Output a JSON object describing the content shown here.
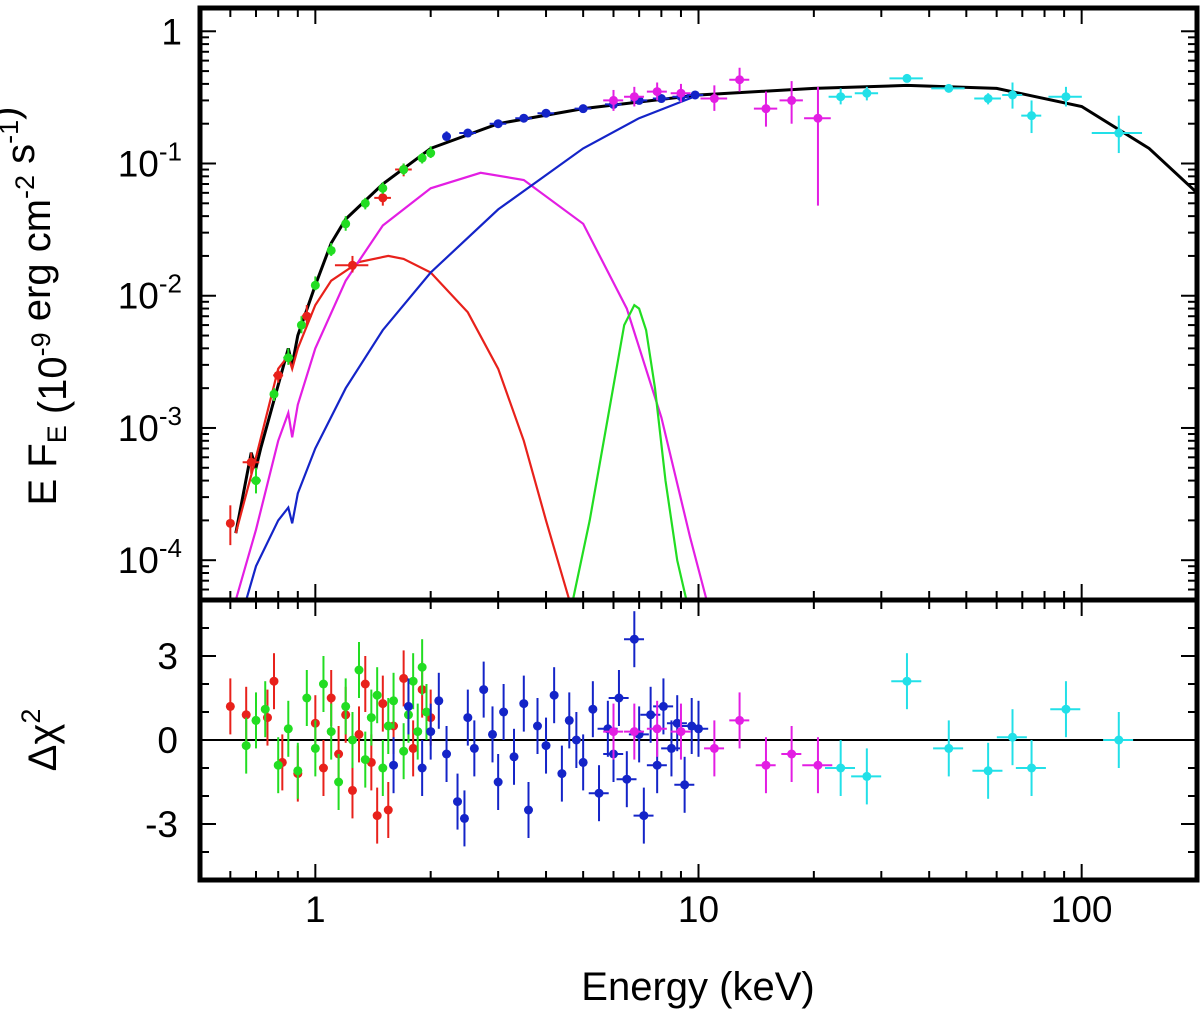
{
  "chart_data": [
    {
      "type": "line",
      "panel": "top",
      "xlabel": "Energy (keV)",
      "ylabel": "E F_E (10^-9 erg cm^-2 s^-1)",
      "xscale": "log",
      "yscale": "log",
      "xlim": [
        0.5,
        200
      ],
      "ylim": [
        5e-05,
        1.5
      ],
      "x_ticks": [
        {
          "value": 1,
          "label": "1"
        },
        {
          "value": 10,
          "label": "10"
        },
        {
          "value": 100,
          "label": "100"
        }
      ],
      "y_ticks": [
        {
          "value": 1,
          "base": "1",
          "exp": ""
        },
        {
          "value": 0.1,
          "base": "10",
          "exp": "-1"
        },
        {
          "value": 0.01,
          "base": "10",
          "exp": "-2"
        },
        {
          "value": 0.001,
          "base": "10",
          "exp": "-3"
        },
        {
          "value": 0.0001,
          "base": "10",
          "exp": "-4"
        }
      ],
      "models": [
        {
          "name": "total",
          "color": "#000000",
          "x": [
            0.62,
            0.68,
            0.7,
            0.72,
            0.85,
            0.87,
            0.9,
            1.0,
            1.1,
            1.2,
            1.5,
            2.0,
            3.0,
            5.0,
            10,
            20,
            35,
            60,
            100,
            150,
            200
          ],
          "y": [
            0.00016,
            0.00065,
            0.0005,
            0.0007,
            0.004,
            0.003,
            0.005,
            0.012,
            0.025,
            0.038,
            0.07,
            0.13,
            0.2,
            0.26,
            0.33,
            0.37,
            0.39,
            0.37,
            0.27,
            0.13,
            0.06
          ]
        },
        {
          "name": "red component",
          "color": "#e8211b",
          "x": [
            0.62,
            0.7,
            0.8,
            0.85,
            0.87,
            0.9,
            1.0,
            1.1,
            1.3,
            1.55,
            1.7,
            2.0,
            2.5,
            3.0,
            3.5,
            4.0,
            4.6
          ],
          "y": [
            0.00016,
            0.0006,
            0.0028,
            0.0035,
            0.0028,
            0.004,
            0.0085,
            0.013,
            0.018,
            0.02,
            0.019,
            0.015,
            0.0075,
            0.0028,
            0.0008,
            0.0002,
            5e-05
          ]
        },
        {
          "name": "magenta component",
          "color": "#e31ee3",
          "x": [
            0.62,
            0.7,
            0.8,
            0.85,
            0.87,
            0.9,
            1.0,
            1.2,
            1.5,
            2.0,
            2.7,
            3.5,
            5.0,
            6.5,
            8.0,
            9.5,
            10.5
          ],
          "y": [
            5e-05,
            0.00017,
            0.0008,
            0.0013,
            0.00085,
            0.0015,
            0.004,
            0.013,
            0.034,
            0.065,
            0.085,
            0.075,
            0.035,
            0.008,
            0.0012,
            0.00015,
            5e-05
          ]
        },
        {
          "name": "blue component",
          "color": "#1424c8",
          "x": [
            0.66,
            0.7,
            0.8,
            0.85,
            0.87,
            0.9,
            1.0,
            1.2,
            1.5,
            2.0,
            3.0,
            5.0,
            7.0,
            10
          ],
          "y": [
            5e-05,
            9e-05,
            0.0002,
            0.00025,
            0.00019,
            0.00032,
            0.0007,
            0.002,
            0.0055,
            0.015,
            0.045,
            0.13,
            0.22,
            0.33
          ]
        },
        {
          "name": "green line",
          "color": "#22dd22",
          "x": [
            4.7,
            5.2,
            5.8,
            6.4,
            6.8,
            7.0,
            7.3,
            7.7,
            8.2,
            8.8,
            9.3
          ],
          "y": [
            5e-05,
            0.0002,
            0.0012,
            0.006,
            0.0085,
            0.008,
            0.0055,
            0.002,
            0.0004,
            0.0001,
            5e-05
          ]
        }
      ],
      "series": [
        {
          "name": "red data",
          "color": "#e8211b",
          "points": [
            [
              0.6,
              0.00019,
              0.02,
              0.00026,
              0.00013
            ],
            [
              0.68,
              0.00055,
              0.05,
              0.00065,
              0.00045
            ],
            [
              0.8,
              0.0025,
              0.03,
              0.0028,
              0.0022
            ],
            [
              0.95,
              0.007,
              0.03,
              0.0085,
              0.006
            ],
            [
              1.25,
              0.017,
              0.1,
              0.02,
              0.015
            ],
            [
              1.5,
              0.055,
              0.05,
              0.062,
              0.048
            ],
            [
              1.7,
              0.09,
              0.05,
              0.1,
              0.08
            ]
          ]
        },
        {
          "name": "green data",
          "color": "#22dd22",
          "points": [
            [
              0.7,
              0.0004,
              0.03,
              0.0005,
              0.00032
            ],
            [
              0.78,
              0.0018,
              0.02,
              0.002,
              0.0016
            ],
            [
              0.85,
              0.0034,
              0.03,
              0.004,
              0.003
            ],
            [
              0.92,
              0.006,
              0.02,
              0.007,
              0.0052
            ],
            [
              1.0,
              0.012,
              0.02,
              0.014,
              0.011
            ],
            [
              1.1,
              0.022,
              0.02,
              0.025,
              0.02
            ],
            [
              1.2,
              0.035,
              0.02,
              0.04,
              0.031
            ],
            [
              1.35,
              0.05,
              0.02,
              0.055,
              0.045
            ],
            [
              1.5,
              0.065,
              0.02,
              0.072,
              0.059
            ],
            [
              1.7,
              0.09,
              0.02,
              0.1,
              0.082
            ],
            [
              1.9,
              0.11,
              0.02,
              0.12,
              0.1
            ],
            [
              2.0,
              0.12,
              0.02,
              0.135,
              0.11
            ]
          ]
        },
        {
          "name": "blue data",
          "color": "#1424c8",
          "points": [
            [
              2.2,
              0.16,
              0.02,
              0.175,
              0.15
            ],
            [
              2.5,
              0.17,
              0.05,
              0.18,
              0.16
            ],
            [
              3.0,
              0.2,
              0.05,
              0.21,
              0.19
            ],
            [
              3.5,
              0.22,
              0.05,
              0.23,
              0.21
            ],
            [
              4.0,
              0.24,
              0.05,
              0.25,
              0.23
            ],
            [
              5.0,
              0.26,
              0.05,
              0.27,
              0.25
            ],
            [
              6.0,
              0.28,
              0.05,
              0.29,
              0.27
            ],
            [
              7.0,
              0.3,
              0.05,
              0.31,
              0.29
            ],
            [
              8.0,
              0.31,
              0.05,
              0.32,
              0.3
            ],
            [
              9.0,
              0.32,
              0.05,
              0.33,
              0.31
            ],
            [
              9.8,
              0.33,
              0.05,
              0.34,
              0.32
            ]
          ]
        },
        {
          "name": "magenta data",
          "color": "#e31ee3",
          "points": [
            [
              6.0,
              0.3,
              0.06,
              0.36,
              0.25
            ],
            [
              6.8,
              0.32,
              0.06,
              0.38,
              0.27
            ],
            [
              7.8,
              0.35,
              0.06,
              0.41,
              0.3
            ],
            [
              9.0,
              0.34,
              0.06,
              0.4,
              0.29
            ],
            [
              11.0,
              0.31,
              0.08,
              0.39,
              0.25
            ],
            [
              12.8,
              0.43,
              0.06,
              0.53,
              0.35
            ],
            [
              15.0,
              0.26,
              0.07,
              0.35,
              0.19
            ],
            [
              17.5,
              0.3,
              0.07,
              0.42,
              0.2
            ],
            [
              20.5,
              0.22,
              0.08,
              0.38,
              0.048
            ]
          ]
        },
        {
          "name": "cyan data",
          "color": "#22e0e8",
          "points": [
            [
              23.5,
              0.32,
              0.07,
              0.37,
              0.28
            ],
            [
              27.5,
              0.34,
              0.07,
              0.38,
              0.3
            ],
            [
              35.0,
              0.44,
              0.1,
              0.46,
              0.42
            ],
            [
              45.0,
              0.37,
              0.1,
              0.39,
              0.35
            ],
            [
              57.0,
              0.31,
              0.08,
              0.34,
              0.28
            ],
            [
              66.0,
              0.33,
              0.06,
              0.41,
              0.26
            ],
            [
              74.0,
              0.23,
              0.06,
              0.3,
              0.17
            ],
            [
              91.0,
              0.32,
              0.1,
              0.38,
              0.27
            ],
            [
              125.0,
              0.17,
              0.15,
              0.23,
              0.12
            ]
          ]
        }
      ]
    },
    {
      "type": "scatter",
      "panel": "bottom",
      "xlabel": "Energy (keV)",
      "ylabel": "Δχ²",
      "ylabel_base": "Δχ",
      "ylabel_exp": "2",
      "xscale": "log",
      "xlim": [
        0.5,
        200
      ],
      "ylim": [
        -5,
        5
      ],
      "y_ticks": [
        {
          "value": 3,
          "label": "3"
        },
        {
          "value": 0,
          "label": "0"
        },
        {
          "value": -3,
          "label": "-3"
        }
      ],
      "series": [
        {
          "name": "red",
          "color": "#e8211b",
          "points": [
            [
              0.6,
              1.2
            ],
            [
              0.66,
              0.9
            ],
            [
              0.75,
              0.8
            ],
            [
              0.78,
              2.1
            ],
            [
              0.82,
              -0.8
            ],
            [
              0.9,
              -1.2
            ],
            [
              1.0,
              0.6
            ],
            [
              1.05,
              -1.0
            ],
            [
              1.1,
              1.5
            ],
            [
              1.15,
              -0.5
            ],
            [
              1.2,
              0.9
            ],
            [
              1.25,
              -1.8
            ],
            [
              1.3,
              0.2
            ],
            [
              1.35,
              2.0
            ],
            [
              1.4,
              -0.8
            ],
            [
              1.45,
              -2.7
            ],
            [
              1.5,
              1.3
            ],
            [
              1.55,
              -2.5
            ],
            [
              1.6,
              0.5
            ],
            [
              1.7,
              2.2
            ],
            [
              1.8,
              -0.3
            ],
            [
              1.9,
              1.8
            ],
            [
              2.0,
              0.8
            ]
          ]
        },
        {
          "name": "green",
          "color": "#22dd22",
          "points": [
            [
              0.66,
              -0.2
            ],
            [
              0.7,
              0.7
            ],
            [
              0.74,
              1.1
            ],
            [
              0.8,
              -0.9
            ],
            [
              0.85,
              0.4
            ],
            [
              0.9,
              -1.1
            ],
            [
              0.95,
              1.5
            ],
            [
              1.0,
              -0.3
            ],
            [
              1.05,
              2.0
            ],
            [
              1.1,
              0.3
            ],
            [
              1.15,
              -1.5
            ],
            [
              1.2,
              1.2
            ],
            [
              1.25,
              0.0
            ],
            [
              1.3,
              2.5
            ],
            [
              1.35,
              -0.7
            ],
            [
              1.4,
              0.8
            ],
            [
              1.45,
              1.6
            ],
            [
              1.5,
              -1.0
            ],
            [
              1.55,
              0.5
            ],
            [
              1.6,
              1.4
            ],
            [
              1.7,
              -0.4
            ],
            [
              1.75,
              0.9
            ],
            [
              1.8,
              2.1
            ],
            [
              1.85,
              0.3
            ],
            [
              1.9,
              2.6
            ],
            [
              1.95,
              1.0
            ]
          ]
        },
        {
          "name": "blue",
          "color": "#1424c8",
          "points": [
            [
              1.6,
              -0.9
            ],
            [
              1.75,
              1.2
            ],
            [
              1.9,
              -1.0
            ],
            [
              2.0,
              0.3
            ],
            [
              2.1,
              1.4
            ],
            [
              2.2,
              -0.5
            ],
            [
              2.35,
              -2.2
            ],
            [
              2.45,
              -2.8
            ],
            [
              2.5,
              0.8
            ],
            [
              2.6,
              -0.3
            ],
            [
              2.75,
              1.8
            ],
            [
              2.9,
              0.2
            ],
            [
              3.0,
              -1.5
            ],
            [
              3.1,
              1.0
            ],
            [
              3.3,
              -0.6
            ],
            [
              3.5,
              1.3
            ],
            [
              3.6,
              -2.5
            ],
            [
              3.8,
              0.5
            ],
            [
              4.0,
              -0.2
            ],
            [
              4.2,
              1.6
            ],
            [
              4.4,
              -1.2
            ],
            [
              4.6,
              0.7
            ],
            [
              4.8,
              0.0
            ],
            [
              5.0,
              -0.8
            ],
            [
              5.3,
              1.1
            ],
            [
              5.5,
              -1.9
            ],
            [
              5.8,
              0.4
            ],
            [
              6.0,
              -0.5
            ],
            [
              6.2,
              1.5
            ],
            [
              6.5,
              -1.4
            ],
            [
              6.8,
              3.6
            ],
            [
              7.0,
              0.2
            ],
            [
              7.2,
              -2.7
            ],
            [
              7.5,
              0.9
            ],
            [
              7.8,
              -0.9
            ],
            [
              8.1,
              1.2
            ],
            [
              8.5,
              -0.3
            ],
            [
              8.8,
              0.6
            ],
            [
              9.2,
              -1.6
            ],
            [
              9.6,
              0.5
            ],
            [
              10.0,
              0.4
            ]
          ]
        },
        {
          "name": "magenta",
          "color": "#e31ee3",
          "points": [
            [
              6.0,
              0.3
            ],
            [
              6.8,
              0.3
            ],
            [
              7.8,
              0.4
            ],
            [
              9.0,
              0.3
            ],
            [
              11.0,
              -0.3
            ],
            [
              12.8,
              0.7
            ],
            [
              15.0,
              -0.9
            ],
            [
              17.5,
              -0.5
            ],
            [
              20.5,
              -0.9
            ]
          ]
        },
        {
          "name": "cyan",
          "color": "#22e0e8",
          "points": [
            [
              23.5,
              -1.0
            ],
            [
              27.5,
              -1.3
            ],
            [
              35.0,
              2.1
            ],
            [
              45.0,
              -0.3
            ],
            [
              57.0,
              -1.1
            ],
            [
              66.0,
              0.1
            ],
            [
              74.0,
              -1.0
            ],
            [
              91.0,
              1.1
            ],
            [
              125.0,
              0.0
            ]
          ]
        }
      ]
    }
  ]
}
